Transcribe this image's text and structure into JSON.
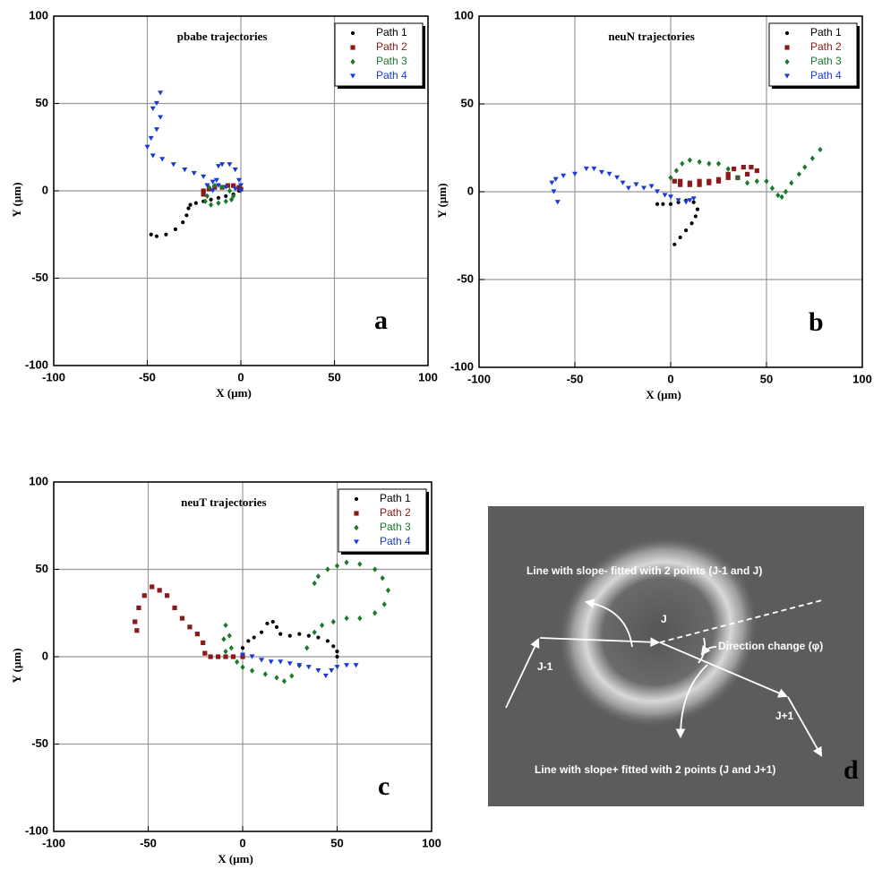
{
  "chart_data": [
    {
      "type": "scatter",
      "title": "pbabe trajectories",
      "panel_label": "a",
      "x_label": "X (µm)",
      "y_label": "Y (µm)",
      "xlim": [
        -100,
        100
      ],
      "ylim": [
        -100,
        100
      ],
      "xticks": [
        -100,
        -50,
        0,
        50,
        100
      ],
      "yticks": [
        -100,
        -50,
        0,
        50,
        100
      ],
      "grid": true,
      "legend": "upper right",
      "series": [
        {
          "name": "Path 1",
          "color": "#000000",
          "marker": "circle",
          "x": [
            -48,
            -45,
            -40,
            -35,
            -31,
            -29,
            -28,
            -27,
            -24,
            -20,
            -16,
            -12,
            -8,
            -4,
            -1
          ],
          "values": [
            -25,
            -26,
            -25,
            -22,
            -18,
            -14,
            -10,
            -8,
            -7,
            -6,
            -5,
            -4,
            -3,
            -2,
            0
          ]
        },
        {
          "name": "Path 2",
          "color": "#8b1a1a",
          "marker": "square",
          "x": [
            -20,
            -20,
            -17,
            -14,
            -10,
            -7,
            -4,
            -1,
            0
          ],
          "values": [
            -2,
            0,
            1,
            2,
            2,
            3,
            3,
            2,
            1
          ]
        },
        {
          "name": "Path 3",
          "color": "#1a7a2a",
          "marker": "diamond",
          "x": [
            -18,
            -19,
            -16,
            -12,
            -8,
            -5,
            -4,
            -6,
            -10,
            -14,
            -17
          ],
          "values": [
            -3,
            -6,
            -8,
            -7,
            -6,
            -5,
            -3,
            0,
            2,
            3,
            2
          ]
        },
        {
          "name": "Path 4",
          "color": "#1a3ad6",
          "marker": "triangle",
          "x": [
            -43,
            -45,
            -47,
            -43,
            -45,
            -48,
            -50,
            -47,
            -42,
            -36,
            -30,
            -25,
            -20,
            -15,
            -15,
            -13,
            -12,
            -10,
            -6,
            -3,
            -1,
            0,
            0,
            -3,
            -8,
            -12,
            -18
          ],
          "values": [
            56,
            50,
            47,
            42,
            35,
            30,
            25,
            20,
            18,
            15,
            12,
            10,
            8,
            5,
            0,
            6,
            14,
            15,
            15,
            12,
            6,
            3,
            0,
            1,
            2,
            3,
            3
          ]
        }
      ]
    },
    {
      "type": "scatter",
      "title": "neuN trajectories",
      "panel_label": "b",
      "x_label": "X (µm)",
      "y_label": "Y (µm)",
      "xlim": [
        -100,
        100
      ],
      "ylim": [
        -100,
        100
      ],
      "xticks": [
        -100,
        -50,
        0,
        50,
        100
      ],
      "yticks": [
        -100,
        -50,
        0,
        50,
        100
      ],
      "grid": true,
      "legend": "upper right",
      "series": [
        {
          "name": "Path 1",
          "color": "#000000",
          "marker": "circle",
          "x": [
            -7,
            -4,
            0,
            4,
            8,
            12,
            14,
            13,
            11,
            8,
            5,
            2
          ],
          "values": [
            -7,
            -7,
            -7,
            -6,
            -5,
            -6,
            -10,
            -14,
            -18,
            -22,
            -26,
            -30
          ]
        },
        {
          "name": "Path 2",
          "color": "#8b1a1a",
          "marker": "square",
          "x": [
            2,
            5,
            10,
            15,
            20,
            25,
            30,
            33,
            38,
            42,
            45,
            40,
            35,
            30,
            25,
            20,
            15,
            10,
            5
          ],
          "values": [
            6,
            4,
            5,
            6,
            6,
            7,
            10,
            13,
            14,
            14,
            12,
            10,
            8,
            8,
            6,
            5,
            4,
            4,
            6
          ]
        },
        {
          "name": "Path 3",
          "color": "#1a7a2a",
          "marker": "diamond",
          "x": [
            0,
            3,
            6,
            10,
            15,
            20,
            25,
            30,
            35,
            40,
            45,
            50,
            53,
            56,
            58,
            60,
            63,
            67,
            70,
            74,
            78
          ],
          "values": [
            8,
            12,
            16,
            18,
            17,
            16,
            16,
            13,
            8,
            5,
            6,
            6,
            2,
            -2,
            -3,
            0,
            5,
            10,
            14,
            19,
            24
          ]
        },
        {
          "name": "Path 4",
          "color": "#1a3ad6",
          "marker": "triangle",
          "x": [
            -59,
            -61,
            -62,
            -60,
            -56,
            -50,
            -44,
            -40,
            -36,
            -32,
            -28,
            -25,
            -22,
            -18,
            -14,
            -10,
            -7,
            -3,
            0,
            4,
            8,
            10,
            12
          ],
          "values": [
            -6,
            0,
            5,
            7,
            9,
            10,
            13,
            13,
            11,
            10,
            8,
            5,
            2,
            4,
            2,
            3,
            0,
            -2,
            -3,
            -5,
            -6,
            -5,
            -4
          ]
        }
      ]
    },
    {
      "type": "scatter",
      "title": "neuT trajectories",
      "panel_label": "c",
      "x_label": "X (µm)",
      "y_label": "Y (µm)",
      "xlim": [
        -100,
        100
      ],
      "ylim": [
        -100,
        100
      ],
      "xticks": [
        -100,
        -50,
        0,
        50,
        100
      ],
      "yticks": [
        -100,
        -50,
        0,
        50,
        100
      ],
      "grid": true,
      "legend": "upper right",
      "series": [
        {
          "name": "Path 1",
          "color": "#000000",
          "marker": "circle",
          "x": [
            0,
            3,
            6,
            10,
            13,
            16,
            18,
            20,
            25,
            30,
            35,
            40,
            45,
            48,
            50,
            50
          ],
          "values": [
            5,
            9,
            11,
            14,
            19,
            20,
            17,
            13,
            12,
            13,
            12,
            11,
            9,
            6,
            3,
            0
          ]
        },
        {
          "name": "Path 2",
          "color": "#8b1a1a",
          "marker": "square",
          "x": [
            -56,
            -57,
            -55,
            -52,
            -48,
            -44,
            -40,
            -36,
            -32,
            -28,
            -24,
            -21,
            -20,
            -17,
            -13,
            -9,
            -5,
            0
          ],
          "values": [
            15,
            20,
            28,
            35,
            40,
            38,
            35,
            28,
            22,
            17,
            13,
            8,
            2,
            0,
            0,
            0,
            0,
            0
          ]
        },
        {
          "name": "Path 3",
          "color": "#1a7a2a",
          "marker": "diamond",
          "x": [
            -9,
            -10,
            -9,
            -7,
            -6,
            -3,
            0,
            5,
            12,
            18,
            22,
            26,
            30,
            34,
            38,
            42,
            48,
            55,
            62,
            70,
            75,
            77,
            74,
            70,
            62,
            55,
            50,
            45,
            40,
            38
          ],
          "values": [
            3,
            10,
            18,
            12,
            5,
            -3,
            -6,
            -8,
            -10,
            -12,
            -14,
            -11,
            -5,
            5,
            14,
            18,
            20,
            22,
            22,
            25,
            30,
            38,
            45,
            50,
            53,
            54,
            52,
            50,
            46,
            42
          ]
        },
        {
          "name": "Path 4",
          "color": "#1a3ad6",
          "marker": "triangle",
          "x": [
            0,
            5,
            10,
            15,
            20,
            25,
            30,
            35,
            40,
            44,
            47,
            50,
            55,
            60
          ],
          "values": [
            1,
            0,
            -2,
            -3,
            -3,
            -4,
            -5,
            -6,
            -8,
            -11,
            -8,
            -6,
            -5,
            -5
          ]
        }
      ]
    }
  ],
  "image_panel": {
    "label": "d",
    "annotations": [
      "Line with slope- fitted with 2 points (J-1 and J)",
      "J",
      "Direction change (φ)",
      "J-1",
      "J+1",
      "Line with slope+ fitted with 2 points (J and J+1)"
    ]
  }
}
